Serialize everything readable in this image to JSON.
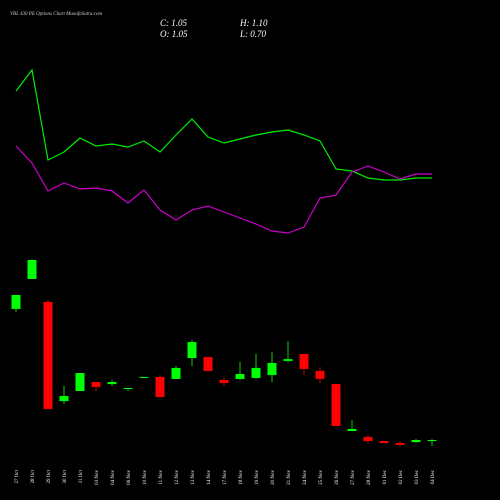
{
  "chart_data": {
    "type": "candlestick",
    "title": "VBL 430 PE Options Chart MunafaSutra.com",
    "summary": {
      "close": "C: 1.05",
      "high": "H: 1.10",
      "open": "O: 1.05",
      "low": "L: 0.70"
    },
    "categories": [
      "27 Oct",
      "28 Oct",
      "29 Oct",
      "30 Oct",
      "31 Oct",
      "03 Nov",
      "04 Nov",
      "06 Nov",
      "10 Nov",
      "11 Nov",
      "12 Nov",
      "13 Nov",
      "14 Nov",
      "17 Nov",
      "18 Nov",
      "19 Nov",
      "20 Nov",
      "21 Nov",
      "24 Nov",
      "25 Nov",
      "26 Nov",
      "27 Nov",
      "28 Nov",
      "01 Dec",
      "02 Dec",
      "03 Dec",
      "04 Dec"
    ],
    "open": [
      8.76,
      10.52,
      9.17,
      3.34,
      3.93,
      4.46,
      4.34,
      4.05,
      4.73,
      4.76,
      4.64,
      5.87,
      5.93,
      4.58,
      4.64,
      4.7,
      4.87,
      5.7,
      6.11,
      5.11,
      4.34,
      1.58,
      1.23,
      0.99,
      0.87,
      0.93,
      1.05
    ],
    "high": [
      9.58,
      11.64,
      9.29,
      4.23,
      4.99,
      4.46,
      4.58,
      4.11,
      4.76,
      4.87,
      5.4,
      6.93,
      5.93,
      4.76,
      5.64,
      6.11,
      6.23,
      6.87,
      6.11,
      5.34,
      4.34,
      2.23,
      1.34,
      0.99,
      0.99,
      1.11,
      1.1
    ],
    "low": [
      8.58,
      10.52,
      2.87,
      3.17,
      3.93,
      3.93,
      4.23,
      3.93,
      4.73,
      3.58,
      4.64,
      5.4,
      5.11,
      4.23,
      4.58,
      4.64,
      4.46,
      5.64,
      4.87,
      4.4,
      1.87,
      1.58,
      0.87,
      0.87,
      0.7,
      0.87,
      0.7
    ],
    "close": [
      9.58,
      11.64,
      2.87,
      3.64,
      4.99,
      4.17,
      4.46,
      4.11,
      4.76,
      3.58,
      5.29,
      6.81,
      5.11,
      4.4,
      4.93,
      5.29,
      5.58,
      5.81,
      5.23,
      4.64,
      1.87,
      1.7,
      0.99,
      0.87,
      0.76,
      1.05,
      1.05
    ],
    "up_color": "#00ff00",
    "down_color": "#ff0000",
    "lines": [
      {
        "color": "#00ee00",
        "values": [
          15.9,
          18.0,
          9.0,
          9.8,
          11.2,
          10.4,
          10.6,
          10.3,
          10.9,
          9.8,
          11.5,
          13.1,
          11.3,
          10.7,
          11.1,
          11.5,
          11.8,
          12.0,
          11.5,
          10.9,
          8.1,
          7.9,
          7.2,
          7.0,
          7.0,
          7.2,
          7.2
        ]
      },
      {
        "color": "#cc00cc",
        "values": [
          10.4,
          8.7,
          5.9,
          6.7,
          6.1,
          6.2,
          5.9,
          4.7,
          6.0,
          4.0,
          3.0,
          4.0,
          4.4,
          3.8,
          3.2,
          2.6,
          1.9,
          1.7,
          2.3,
          5.2,
          5.5,
          7.8,
          8.4,
          7.8,
          7.1,
          7.6,
          7.6
        ]
      }
    ]
  }
}
